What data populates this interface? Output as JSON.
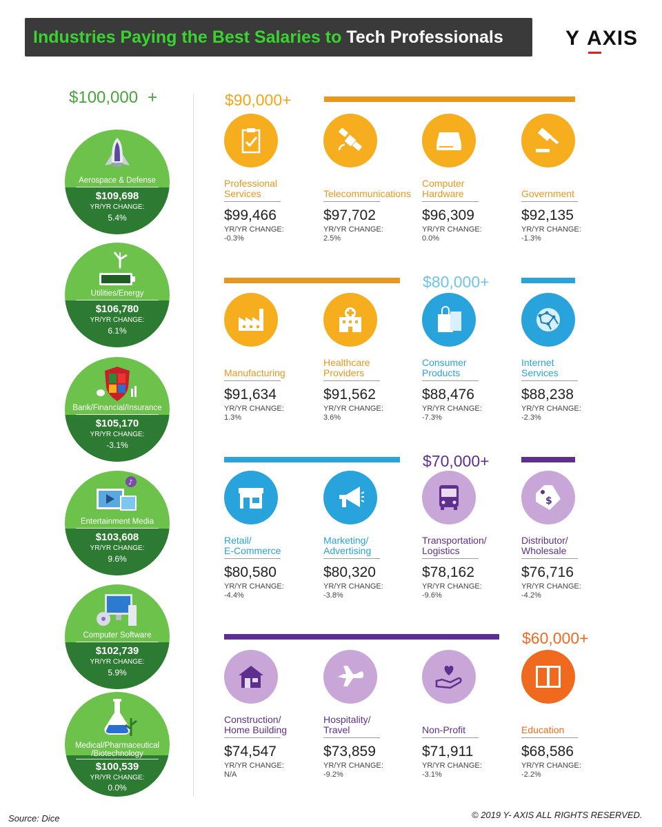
{
  "header": {
    "title_part1": "Industries Paying the Best Salaries to",
    "title_part2": "Tech Professionals",
    "logo_left": "Y",
    "logo_a": "A",
    "logo_right": "XIS"
  },
  "colors": {
    "green_light": "#6cc24a",
    "green_dark": "#2d7a32",
    "orange": "#e8961e",
    "orange_light": "#f6ad1e",
    "blue": "#29a3db",
    "purple": "#5e2f8f",
    "purple_light": "#c9a6d8",
    "edu_orange": "#ef6a1f"
  },
  "left": {
    "heading": "$100,000",
    "heading_plus": "+",
    "items": [
      {
        "name": "Aerospace & Defense",
        "salary": "$109,698",
        "change_label": "YR/YR CHANGE:",
        "change": "5.4%",
        "icon": "rocket-icon"
      },
      {
        "name": "Utilities/Energy",
        "salary": "$106,780",
        "change_label": "YR/YR CHANGE:",
        "change": "6.1%",
        "icon": "wind-battery-icon"
      },
      {
        "name": "Bank/Financial/Insurance",
        "salary": "$105,170",
        "change_label": "YR/YR CHANGE:",
        "change": "-3.1%",
        "icon": "shield-finance-icon"
      },
      {
        "name": "Entertainment Media",
        "salary": "$103,608",
        "change_label": "YR/YR CHANGE:",
        "change": "9.6%",
        "icon": "media-icon"
      },
      {
        "name": "Computer Software",
        "salary": "$102,739",
        "change_label": "YR/YR CHANGE:",
        "change": "5.9%",
        "icon": "computer-icon"
      },
      {
        "name": "Medical/Pharmaceutical\n/Biotechnology",
        "salary": "$100,539",
        "change_label": "YR/YR CHANGE:",
        "change": "0.0%",
        "icon": "flask-icon"
      }
    ]
  },
  "tiers": {
    "t90": "$90,000+",
    "t80": "$80,000+",
    "t70": "$70,000+",
    "t60": "$60,000+"
  },
  "rows": [
    [
      {
        "name": "Professional\nServices",
        "salary": "$99,466",
        "change_label": "YR/YR CHANGE:",
        "change": "-0.3%",
        "icon": "clipboard-icon"
      },
      {
        "name": "Telecommunications",
        "salary": "$97,702",
        "change_label": "YR/YR CHANGE:",
        "change": "2.5%",
        "icon": "satellite-icon"
      },
      {
        "name": "Computer\nHardware",
        "salary": "$96,309",
        "change_label": "YR/YR CHANGE:",
        "change": "0.0%",
        "icon": "hard-drive-icon"
      },
      {
        "name": "Government",
        "salary": "$92,135",
        "change_label": "YR/YR CHANGE:",
        "change": "-1.3%",
        "icon": "gavel-icon"
      }
    ],
    [
      {
        "name": "Manufacturing",
        "salary": "$91,634",
        "change_label": "YR/YR CHANGE:",
        "change": "1.3%",
        "icon": "factory-icon"
      },
      {
        "name": "Healthcare\nProviders",
        "salary": "$91,562",
        "change_label": "YR/YR CHANGE:",
        "change": "3.6%",
        "icon": "hospital-icon"
      },
      {
        "name": "Consumer\nProducts",
        "salary": "$88,476",
        "change_label": "YR/YR CHANGE:",
        "change": "-7.3%",
        "icon": "shopping-bag-icon"
      },
      {
        "name": "Internet\nServices",
        "salary": "$88,238",
        "change_label": "YR/YR CHANGE:",
        "change": "-2.3%",
        "icon": "globe-network-icon"
      }
    ],
    [
      {
        "name": "Retail/\nE-Commerce",
        "salary": "$80,580",
        "change_label": "YR/YR CHANGE:",
        "change": "-4.4%",
        "icon": "storefront-icon"
      },
      {
        "name": "Marketing/\nAdvertising",
        "salary": "$80,320",
        "change_label": "YR/YR CHANGE:",
        "change": "-3.8%",
        "icon": "megaphone-icon"
      },
      {
        "name": "Transportation/\nLogistics",
        "salary": "$78,162",
        "change_label": "YR/YR CHANGE:",
        "change": "-9.6%",
        "icon": "bus-icon"
      },
      {
        "name": "Distributor/\nWholesale",
        "salary": "$76,716",
        "change_label": "YR/YR CHANGE:",
        "change": "-4.2%",
        "icon": "price-tag-icon"
      }
    ],
    [
      {
        "name": "Construction/\nHome Building",
        "salary": "$74,547",
        "change_label": "YR/YR CHANGE:",
        "change": "N/A",
        "icon": "house-icon"
      },
      {
        "name": "Hospitality/\nTravel",
        "salary": "$73,859",
        "change_label": "YR/YR CHANGE:",
        "change": "-9.2%",
        "icon": "airplane-icon"
      },
      {
        "name": "Non-Profit",
        "salary": "$71,911",
        "change_label": "YR/YR CHANGE:",
        "change": "-3.1%",
        "icon": "heart-hand-icon"
      },
      {
        "name": "Education",
        "salary": "$68,586",
        "change_label": "YR/YR CHANGE:",
        "change": "-2.2%",
        "icon": "book-icon"
      }
    ]
  ],
  "footer": {
    "source": "Source: Dice",
    "copyright": "© 2019 Y- AXIS  ALL RIGHTS RESERVED."
  }
}
